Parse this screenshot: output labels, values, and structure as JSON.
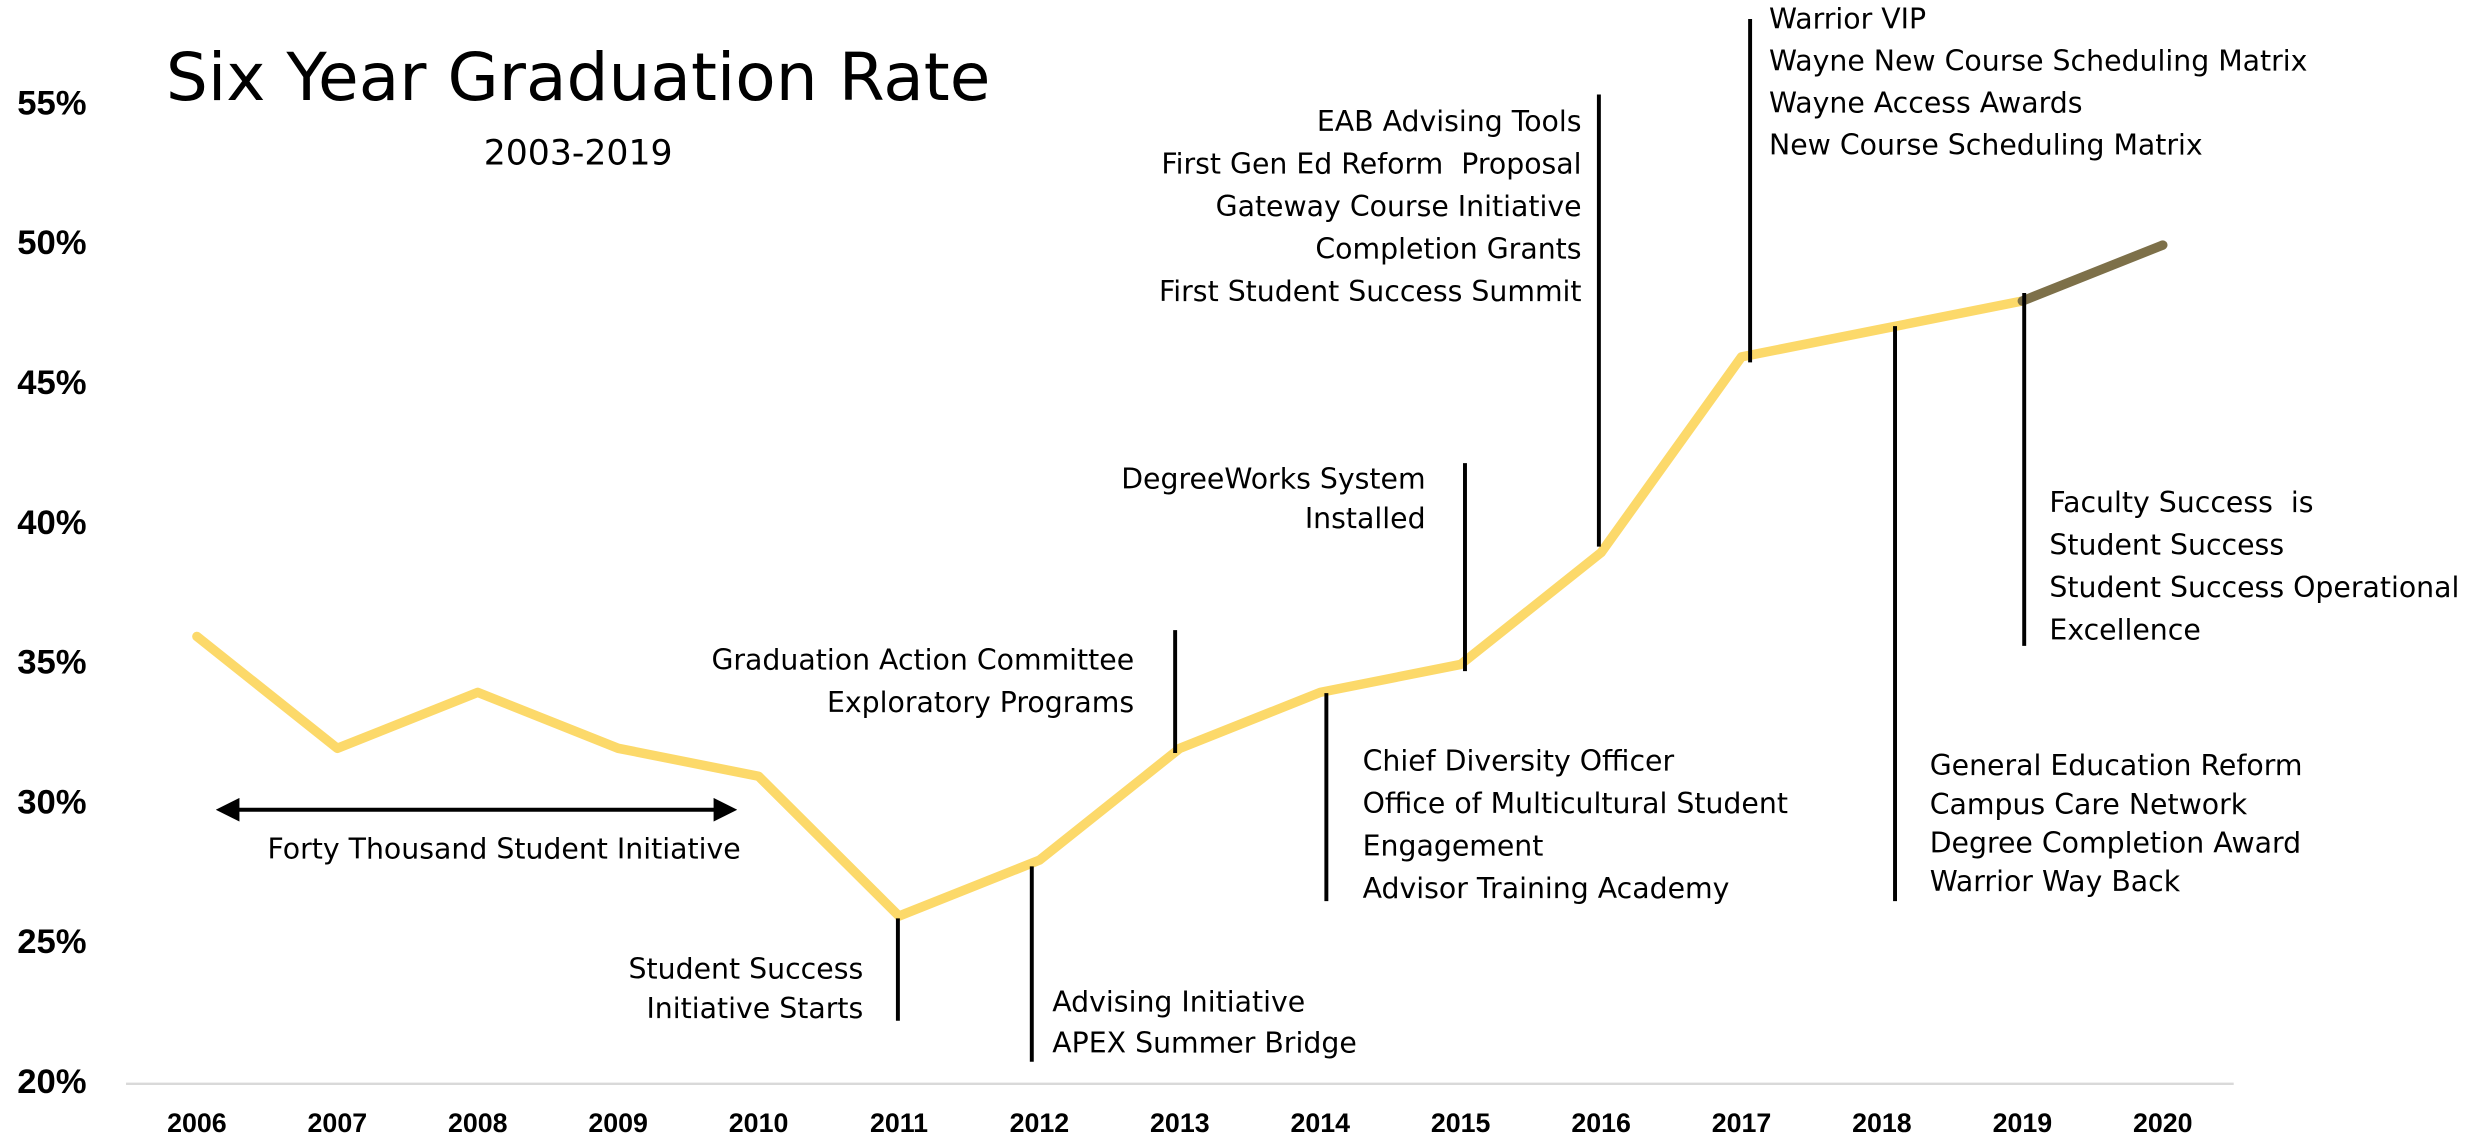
{
  "chart_data": {
    "type": "line",
    "title": "Six Year Graduation Rate",
    "subtitle": "2003-2019",
    "categories": [
      "2006",
      "2007",
      "2008",
      "2009",
      "2010",
      "2011",
      "2012",
      "2013",
      "2014",
      "2015",
      "2016",
      "2017",
      "2018",
      "2019",
      "2020"
    ],
    "series": [
      {
        "color": "#fcd96a",
        "values": [
          36,
          32,
          34,
          32,
          31,
          26,
          28,
          32,
          34,
          35,
          39,
          46,
          47,
          48,
          null
        ]
      },
      {
        "color": "#7d7049",
        "values": [
          null,
          null,
          null,
          null,
          null,
          null,
          null,
          null,
          null,
          null,
          null,
          null,
          null,
          48,
          50
        ]
      }
    ],
    "ylim": [
      20,
      58.2
    ],
    "yticks": [
      {
        "value": 20,
        "label": "20%"
      },
      {
        "value": 25,
        "label": "25%"
      },
      {
        "value": 30,
        "label": "30%"
      },
      {
        "value": 35,
        "label": "35%"
      },
      {
        "value": 40,
        "label": "40%"
      },
      {
        "value": 45,
        "label": "45%"
      },
      {
        "value": 50,
        "label": "50%"
      },
      {
        "value": 55,
        "label": "55%"
      }
    ],
    "annotations": [
      {
        "lines": [
          "Forty Thousand Student Initiative"
        ]
      },
      {
        "lines": [
          "Student Success",
          "Initiative Starts"
        ]
      },
      {
        "lines": [
          "Advising Initiative",
          "APEX Summer Bridge"
        ]
      },
      {
        "lines": [
          "Graduation Action Committee",
          "Exploratory Programs"
        ]
      },
      {
        "lines": [
          "Chief Diversity Officer",
          "Office of Multicultural Student",
          "Engagement",
          "Advisor Training Academy"
        ]
      },
      {
        "lines": [
          "DegreeWorks System",
          "Installed"
        ]
      },
      {
        "lines": [
          "EAB Advising Tools",
          "First Gen Ed Reform  Proposal",
          "Gateway Course Initiative",
          "Completion Grants",
          "First Student Success Summit"
        ]
      },
      {
        "lines": [
          "Warrior VIP",
          "Wayne New Course Scheduling Matrix",
          "Wayne Access Awards",
          "New Course Scheduling Matrix"
        ]
      },
      {
        "lines": [
          "General Education Reform",
          "Campus Care Network",
          "Degree Completion Award",
          "Warrior Way Back"
        ]
      },
      {
        "lines": [
          "Faculty Success  is",
          "Student Success",
          "Student Success Operational",
          "Excellence"
        ]
      }
    ]
  }
}
